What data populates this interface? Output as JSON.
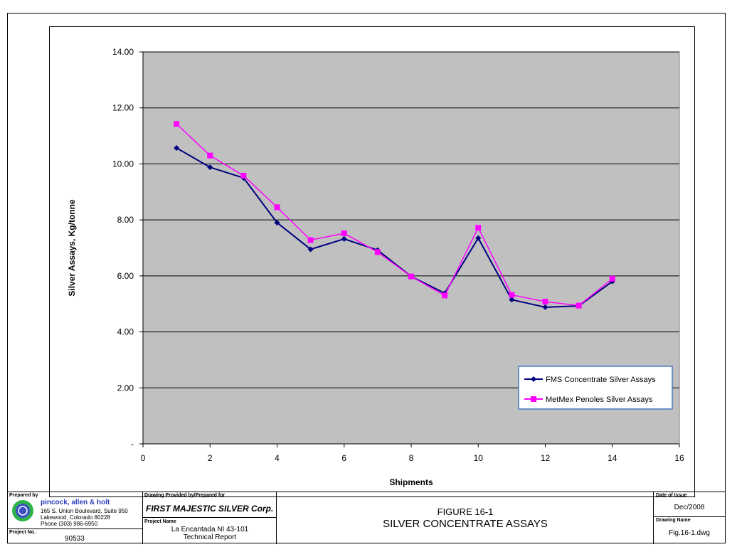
{
  "chart_data": {
    "type": "line",
    "xlabel": "Shipments",
    "ylabel": "Silver Assays,  Kg/tonne",
    "xlim": [
      0,
      16
    ],
    "ylim": [
      0,
      14
    ],
    "x_ticks": [
      "0",
      "2",
      "4",
      "6",
      "8",
      "10",
      "12",
      "14",
      "16"
    ],
    "y_ticks": [
      "-",
      "2.00",
      "4.00",
      "6.00",
      "8.00",
      "10.00",
      "12.00",
      "14.00"
    ],
    "plot_background": "#c0c0c0",
    "grid": "horizontal",
    "legend_position": "lower-right",
    "series": [
      {
        "name": "FMS Concentrate Silver Assays",
        "color": "#000080",
        "marker": "diamond",
        "x": [
          1,
          2,
          3,
          4,
          5,
          6,
          7,
          8,
          9,
          10,
          11,
          12,
          13,
          14
        ],
        "values": [
          10.57,
          9.88,
          9.5,
          7.9,
          6.95,
          7.32,
          6.92,
          5.98,
          5.38,
          7.35,
          5.15,
          4.88,
          4.93,
          5.8
        ]
      },
      {
        "name": "MetMex Penoles Silver Assays",
        "color": "#ff00ff",
        "marker": "square",
        "x": [
          1,
          2,
          3,
          4,
          5,
          6,
          7,
          8,
          9,
          10,
          11,
          12,
          13,
          14
        ],
        "values": [
          11.43,
          10.3,
          9.58,
          8.45,
          7.28,
          7.52,
          6.85,
          5.98,
          5.3,
          7.72,
          5.32,
          5.08,
          4.94,
          5.9
        ]
      }
    ]
  },
  "title_block": {
    "prepared_by_label": "Prepared by",
    "firm_name": "pincock, allen & holt",
    "firm_address_1": "165 S. Union Boulevard, Suite 950",
    "firm_address_2": "Lakewood, Colorado 80228",
    "firm_phone": "Phone (303) 986-6950",
    "project_no_label": "Project No.",
    "project_no": "90533",
    "drawing_provided_label": "Drawing Provided by/Prepared for",
    "client": "FIRST MAJESTIC SILVER Corp.",
    "project_name_label": "Project Name",
    "project_name_1": "La Encantada NI 43-101",
    "project_name_2": "Technical Report",
    "figure_number": "FIGURE 16-1",
    "figure_title": "SILVER CONCENTRATE ASSAYS",
    "date_label": "Date of Issue",
    "date": "Dec/2008",
    "drawing_name_label": "Drawing Name",
    "drawing_name": "Fig.16-1.dwg"
  }
}
